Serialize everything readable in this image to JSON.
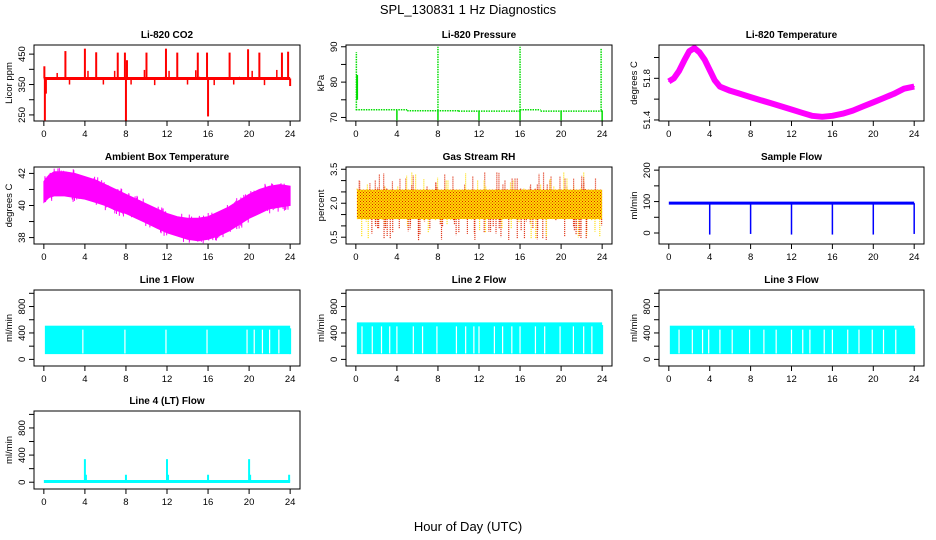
{
  "figure": {
    "title": "SPL_130831  1 Hz Diagnostics",
    "xlabel": "Hour of Day (UTC)"
  },
  "chart_data": [
    {
      "id": "co2",
      "type": "line",
      "title": "Li-820 CO2",
      "xlabel": "",
      "ylabel": "Licor ppm",
      "xlim": [
        0,
        24
      ],
      "ylim": [
        230,
        480
      ],
      "x_ticks": [
        0,
        4,
        8,
        12,
        16,
        20,
        24
      ],
      "y_ticks": [
        250,
        300,
        350,
        400,
        450
      ],
      "y_tick_labels": [
        "250",
        "",
        "350",
        "",
        "450"
      ],
      "color": "#ff0000",
      "baseline": 370,
      "spikes": [
        {
          "x": 0.05,
          "y": 410
        },
        {
          "x": 0.1,
          "y": 232
        },
        {
          "x": 0.2,
          "y": 320
        },
        {
          "x": 2.1,
          "y": 460
        },
        {
          "x": 4.0,
          "y": 468
        },
        {
          "x": 5.1,
          "y": 456
        },
        {
          "x": 7.2,
          "y": 455
        },
        {
          "x": 7.9,
          "y": 455
        },
        {
          "x": 8.0,
          "y": 228
        },
        {
          "x": 8.1,
          "y": 430
        },
        {
          "x": 10.0,
          "y": 455
        },
        {
          "x": 11.9,
          "y": 468
        },
        {
          "x": 13.0,
          "y": 455
        },
        {
          "x": 15.0,
          "y": 455
        },
        {
          "x": 15.9,
          "y": 455
        },
        {
          "x": 16.0,
          "y": 245
        },
        {
          "x": 18.1,
          "y": 455
        },
        {
          "x": 19.9,
          "y": 466
        },
        {
          "x": 21.0,
          "y": 455
        },
        {
          "x": 23.2,
          "y": 455
        },
        {
          "x": 23.8,
          "y": 458
        },
        {
          "x": 24.0,
          "y": 345
        }
      ],
      "small_spikes": [
        {
          "x": 1.3,
          "y": 388
        },
        {
          "x": 2.5,
          "y": 350
        },
        {
          "x": 4.3,
          "y": 395
        },
        {
          "x": 5.8,
          "y": 350
        },
        {
          "x": 6.9,
          "y": 395
        },
        {
          "x": 8.5,
          "y": 350
        },
        {
          "x": 9.8,
          "y": 398
        },
        {
          "x": 10.8,
          "y": 348
        },
        {
          "x": 12.2,
          "y": 395
        },
        {
          "x": 14.0,
          "y": 350
        },
        {
          "x": 14.8,
          "y": 397
        },
        {
          "x": 16.6,
          "y": 348
        },
        {
          "x": 18.5,
          "y": 350
        },
        {
          "x": 20.3,
          "y": 395
        },
        {
          "x": 21.5,
          "y": 348
        },
        {
          "x": 22.7,
          "y": 398
        }
      ]
    },
    {
      "id": "pressure",
      "type": "line",
      "title": "Li-820 Pressure",
      "xlabel": "",
      "ylabel": "kPa",
      "xlim": [
        0,
        24
      ],
      "ylim": [
        69,
        90.5
      ],
      "x_ticks": [
        0,
        4,
        8,
        12,
        16,
        20,
        24
      ],
      "y_ticks": [
        70,
        75,
        80,
        85,
        90
      ],
      "y_tick_labels": [
        "70",
        "",
        "80",
        "",
        "90"
      ],
      "color": "#00dd00",
      "baseline_segments": [
        {
          "x0": 0.0,
          "x1": 5.0,
          "y": 72.2
        },
        {
          "x0": 5.0,
          "x1": 10.0,
          "y": 71.9
        },
        {
          "x0": 10.0,
          "x1": 16.0,
          "y": 71.8
        },
        {
          "x0": 16.0,
          "x1": 18.0,
          "y": 72.2
        },
        {
          "x0": 18.0,
          "x1": 24.0,
          "y": 71.8
        }
      ],
      "spikes": [
        {
          "x": 0.05,
          "y": 88.5
        },
        {
          "x": 8.0,
          "y": 90
        },
        {
          "x": 16.0,
          "y": 90
        },
        {
          "x": 23.9,
          "y": 89.5
        }
      ],
      "dips": [
        {
          "x": 4.0,
          "y": 69.2
        },
        {
          "x": 8.0,
          "y": 69.2
        },
        {
          "x": 12.0,
          "y": 69.2
        },
        {
          "x": 16.0,
          "y": 69.2
        },
        {
          "x": 20.0,
          "y": 69.2
        },
        {
          "x": 24.0,
          "y": 69.0
        }
      ]
    },
    {
      "id": "li820_temp",
      "type": "line",
      "title": "Li-820 Temperature",
      "xlabel": "",
      "ylabel": "degrees C",
      "xlim": [
        0,
        24
      ],
      "ylim": [
        51.39,
        52.12
      ],
      "x_ticks": [
        0,
        4,
        8,
        12,
        16,
        20,
        24
      ],
      "y_ticks": [
        51.4,
        51.6,
        51.8,
        52.0
      ],
      "y_tick_labels": [
        "51.4",
        "",
        "51.8",
        ""
      ],
      "color": "#ff00ff",
      "x": [
        0,
        0.5,
        1,
        1.5,
        2,
        2.5,
        3,
        3.5,
        4,
        4.5,
        5,
        6,
        7,
        8,
        9,
        10,
        11,
        12,
        13,
        14,
        15,
        16,
        17,
        18,
        19,
        20,
        21,
        22,
        23,
        24
      ],
      "y": [
        51.77,
        51.8,
        51.87,
        51.97,
        52.06,
        52.09,
        52.05,
        51.98,
        51.88,
        51.78,
        51.72,
        51.68,
        51.65,
        51.62,
        51.59,
        51.56,
        51.53,
        51.5,
        51.47,
        51.44,
        51.43,
        51.44,
        51.46,
        51.49,
        51.53,
        51.57,
        51.61,
        51.65,
        51.7,
        51.72
      ]
    },
    {
      "id": "ambient_temp",
      "type": "area",
      "title": "Ambient Box Temperature",
      "xlabel": "",
      "ylabel": "degrees C",
      "xlim": [
        0,
        24
      ],
      "ylim": [
        37.6,
        42.4
      ],
      "x_ticks": [
        0,
        4,
        8,
        12,
        16,
        20,
        24
      ],
      "y_ticks": [
        38,
        39,
        40,
        41,
        42
      ],
      "y_tick_labels": [
        "38",
        "",
        "40",
        "",
        "42"
      ],
      "color": "#ff00ff",
      "x": [
        0,
        0.5,
        1,
        2,
        3,
        4,
        5,
        6,
        7,
        8,
        9,
        10,
        11,
        12,
        13,
        14,
        15,
        16,
        17,
        18,
        19,
        20,
        21,
        22,
        23,
        24
      ],
      "y_low": [
        40.2,
        40.5,
        40.6,
        40.6,
        40.5,
        40.4,
        40.2,
        40.0,
        39.7,
        39.5,
        39.2,
        38.9,
        38.6,
        38.3,
        38.1,
        37.9,
        37.8,
        37.9,
        38.1,
        38.4,
        38.8,
        39.2,
        39.5,
        39.8,
        39.9,
        40.0
      ],
      "y_high": [
        41.5,
        41.9,
        42.1,
        42.1,
        42.0,
        41.8,
        41.6,
        41.3,
        41.0,
        40.7,
        40.4,
        40.1,
        39.8,
        39.5,
        39.3,
        39.2,
        39.2,
        39.3,
        39.6,
        39.9,
        40.3,
        40.7,
        41.0,
        41.2,
        41.3,
        41.2
      ]
    },
    {
      "id": "gas_rh",
      "type": "area",
      "title": "Gas Stream RH",
      "xlabel": "",
      "ylabel": "percent",
      "xlim": [
        0,
        24
      ],
      "ylim": [
        0.2,
        3.6
      ],
      "x_ticks": [
        0,
        4,
        8,
        12,
        16,
        20,
        24
      ],
      "y_ticks": [
        0.5,
        1.0,
        1.5,
        2.0,
        2.5,
        3.0,
        3.5
      ],
      "y_tick_labels": [
        "0.5",
        "",
        "",
        "2.0",
        "",
        "",
        "3.5"
      ],
      "colors": {
        "fill": "#ffdd00",
        "stipple": "#dd2200"
      },
      "band_low": 1.3,
      "band_high": 2.6,
      "spike_max": 3.6,
      "spike_min": 0.3
    },
    {
      "id": "sample_flow",
      "type": "line",
      "title": "Sample Flow",
      "xlabel": "",
      "ylabel": "ml/min",
      "xlim": [
        0,
        24
      ],
      "ylim": [
        -35,
        210
      ],
      "x_ticks": [
        0,
        4,
        8,
        12,
        16,
        20,
        24
      ],
      "y_ticks": [
        0,
        50,
        100,
        150,
        200
      ],
      "y_tick_labels": [
        "0",
        "",
        "100",
        "",
        "200"
      ],
      "color": "#0000ff",
      "baseline": 95,
      "dips": [
        {
          "x": 4.0,
          "y": -5
        },
        {
          "x": 8.0,
          "y": -3
        },
        {
          "x": 12.0,
          "y": -5
        },
        {
          "x": 16.0,
          "y": -5
        },
        {
          "x": 20.0,
          "y": -5
        },
        {
          "x": 24.0,
          "y": -3
        }
      ]
    },
    {
      "id": "line1_flow",
      "type": "area",
      "title": "Line 1 Flow",
      "xlabel": "",
      "ylabel": "ml/min",
      "xlim": [
        0,
        24
      ],
      "ylim": [
        -100,
        1050
      ],
      "x_ticks": [
        0,
        4,
        8,
        12,
        16,
        20,
        24
      ],
      "y_ticks": [
        0,
        200,
        400,
        600,
        800,
        1000
      ],
      "y_tick_labels": [
        "0",
        "",
        "400",
        "",
        "800",
        ""
      ],
      "color": "#00ffff",
      "band_low": 80,
      "band_high": 510,
      "gaps": [
        3.8,
        7.9,
        11.9,
        15.9,
        19.8,
        20.5,
        21.3,
        22.0,
        22.9
      ]
    },
    {
      "id": "line2_flow",
      "type": "area",
      "title": "Line 2 Flow",
      "xlabel": "",
      "ylabel": "ml/min",
      "xlim": [
        0,
        24
      ],
      "ylim": [
        -100,
        1050
      ],
      "x_ticks": [
        0,
        4,
        8,
        12,
        16,
        20,
        24
      ],
      "y_ticks": [
        0,
        200,
        400,
        600,
        800,
        1000
      ],
      "y_tick_labels": [
        "0",
        "",
        "400",
        "",
        "800",
        ""
      ],
      "color": "#00ffff",
      "band_low": 80,
      "band_high": 560,
      "gaps": [
        0.6,
        1.6,
        2.5,
        3.3,
        4.0,
        5.6,
        6.5,
        7.9,
        9.8,
        10.7,
        11.5,
        12.0,
        13.5,
        14.3,
        15.2,
        16.0,
        17.5,
        18.4,
        19.9,
        21.2,
        22.2,
        23.0
      ]
    },
    {
      "id": "line3_flow",
      "type": "area",
      "title": "Line 3 Flow",
      "xlabel": "",
      "ylabel": "ml/min",
      "xlim": [
        0,
        24
      ],
      "ylim": [
        -100,
        1050
      ],
      "x_ticks": [
        0,
        4,
        8,
        12,
        16,
        20,
        24
      ],
      "y_ticks": [
        0,
        200,
        400,
        600,
        800,
        1000
      ],
      "y_tick_labels": [
        "0",
        "",
        "400",
        "",
        "800",
        ""
      ],
      "color": "#00ffff",
      "band_low": 80,
      "band_high": 510,
      "gaps": [
        1.0,
        2.3,
        3.3,
        3.9,
        5.0,
        6.2,
        7.9,
        9.3,
        10.5,
        12.0,
        13.1,
        13.8,
        15.2,
        16.0,
        17.5,
        18.6,
        19.9,
        21.0,
        22.2
      ]
    },
    {
      "id": "line4_flow",
      "type": "line",
      "title": "Line 4 (LT) Flow",
      "xlabel": "",
      "ylabel": "ml/min",
      "xlim": [
        0,
        24
      ],
      "ylim": [
        -100,
        1050
      ],
      "x_ticks": [
        0,
        4,
        8,
        12,
        16,
        20,
        24
      ],
      "y_ticks": [
        0,
        200,
        400,
        600,
        800,
        1000
      ],
      "y_tick_labels": [
        "0",
        "",
        "400",
        "",
        "800",
        ""
      ],
      "color": "#00ffff",
      "baseline": 10,
      "spikes": [
        {
          "x": 4.0,
          "y": 340
        },
        {
          "x": 4.1,
          "y": 110
        },
        {
          "x": 8.0,
          "y": 110
        },
        {
          "x": 12.0,
          "y": 340
        },
        {
          "x": 12.1,
          "y": 110
        },
        {
          "x": 16.0,
          "y": 110
        },
        {
          "x": 20.0,
          "y": 340
        },
        {
          "x": 20.1,
          "y": 110
        },
        {
          "x": 23.9,
          "y": 110
        }
      ]
    }
  ]
}
